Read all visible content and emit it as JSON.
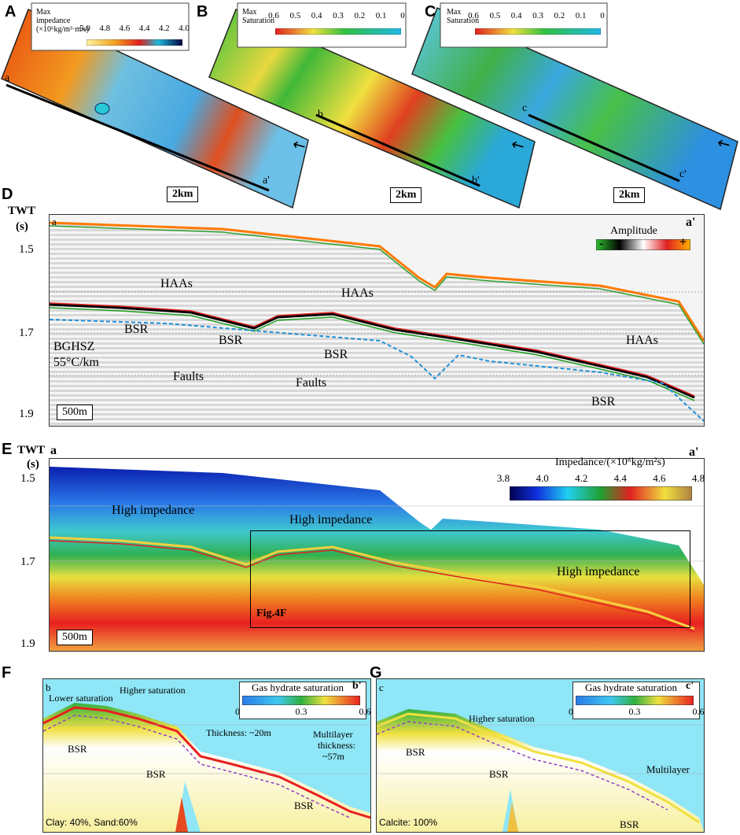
{
  "panels": {
    "A": {
      "letter": "A",
      "legend_title": "Max impedance (×10⁶kg/m³·m/s)",
      "legend_ticks": [
        "5.0",
        "4.8",
        "4.6",
        "4.4",
        "4.2",
        "4.0"
      ],
      "line_start": "a",
      "line_end": "a'",
      "scale": "2km"
    },
    "B": {
      "letter": "B",
      "legend_title": "Max Saturation",
      "legend_ticks": [
        "0.6",
        "0.5",
        "0.4",
        "0.3",
        "0.2",
        "0.1",
        "0"
      ],
      "line_start": "b",
      "line_end": "b'",
      "scale": "2km"
    },
    "C": {
      "letter": "C",
      "legend_title": "Max Saturation",
      "legend_ticks": [
        "0.6",
        "0.5",
        "0.4",
        "0.3",
        "0.2",
        "0.1",
        "0"
      ],
      "line_start": "c",
      "line_end": "c'",
      "scale": "2km"
    },
    "D": {
      "letter": "D",
      "yaxis_label": "TWT",
      "yaxis_unit": "(s)",
      "yticks": [
        "1.5",
        "1.7",
        "1.9"
      ],
      "line_start": "a",
      "line_end": "a'",
      "amplitude_label": "Amplitude",
      "amp_minus": "-",
      "amp_plus": "+",
      "annotations": {
        "haas1": "HAAs",
        "haas2": "HAAs",
        "haas3": "HAAs",
        "bsr1": "BSR",
        "bsr2": "BSR",
        "bsr3": "BSR",
        "bsr4": "BSR",
        "bghsz": "BGHSZ",
        "gradient": "55°C/km",
        "faults1": "Faults",
        "faults2": "Faults"
      },
      "scale": "500m"
    },
    "E": {
      "letter": "E",
      "yaxis_label": "TWT",
      "yaxis_unit": "(s)",
      "yticks": [
        "1.5",
        "1.7",
        "1.9"
      ],
      "line_start": "a",
      "line_end": "a'",
      "colorbar_title": "Impedance/(×10⁶kg/m²s)",
      "colorbar_ticks": [
        "3.8",
        "4.0",
        "4.2",
        "4.4",
        "4.6",
        "4.8"
      ],
      "annotations": {
        "hi1": "High impedance",
        "hi2": "High impedance",
        "hi3": "High impedance",
        "fig": "Fig.4F"
      },
      "scale": "500m"
    },
    "F": {
      "letter": "F",
      "line_start": "b",
      "line_end": "b'",
      "colorbar_title": "Gas hydrate saturation",
      "colorbar_ticks": [
        "0",
        "0.3",
        "0.6"
      ],
      "annotations": {
        "lower": "Lower saturation",
        "higher": "Higher saturation",
        "thick1": "Thickness: ~20m",
        "multi1": "Multilayer",
        "multi2": "thickness:",
        "multi3": "~57m",
        "bsr1": "BSR",
        "bsr2": "BSR",
        "bsr3": "BSR",
        "comp": "Clay: 40%, Sand:60%"
      }
    },
    "G": {
      "letter": "G",
      "line_start": "c",
      "line_end": "c'",
      "colorbar_title": "Gas hydrate saturation",
      "colorbar_ticks": [
        "0",
        "0.3",
        "0.6"
      ],
      "annotations": {
        "higher": "Higher saturation",
        "multi": "Multilayer",
        "bsr1": "BSR",
        "bsr2": "BSR",
        "bsr3": "BSR",
        "comp": "Calcite: 100%"
      }
    }
  },
  "colors": {
    "bsr_line": "#1e90d8",
    "rainbow": [
      "#000070",
      "#1040ff",
      "#20c8ff",
      "#30c040",
      "#ff2020",
      "#ffe060"
    ]
  }
}
